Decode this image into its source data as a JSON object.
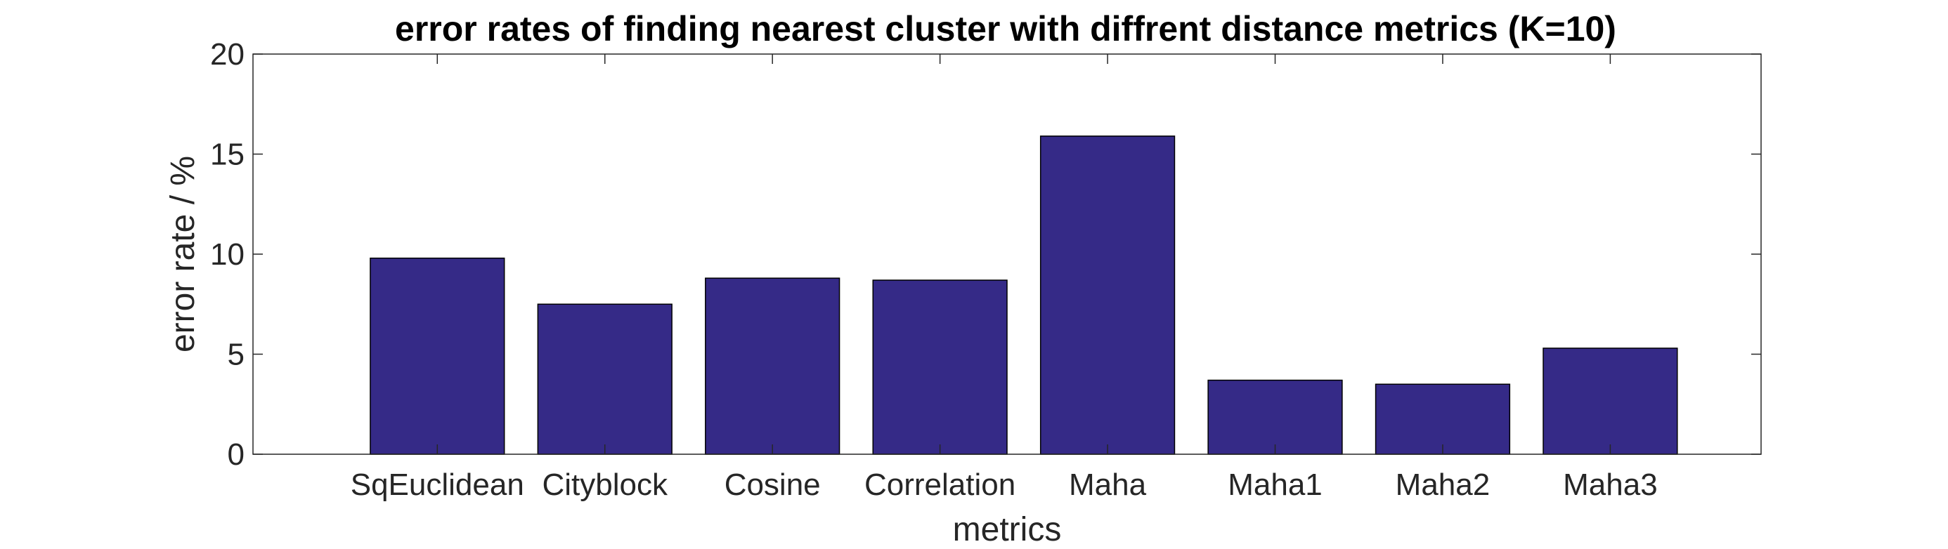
{
  "chart_data": {
    "type": "bar",
    "title": "error rates of finding nearest cluster with diffrent distance metrics (K=10)",
    "xlabel": "metrics",
    "ylabel": "error rate / %",
    "categories": [
      "SqEuclidean",
      "Cityblock",
      "Cosine",
      "Correlation",
      "Maha",
      "Maha1",
      "Maha2",
      "Maha3"
    ],
    "values": [
      9.8,
      7.5,
      8.8,
      8.7,
      15.9,
      3.7,
      3.5,
      5.3
    ],
    "ylim": [
      0,
      20
    ],
    "yticks": [
      0,
      5,
      10,
      15,
      20
    ],
    "xlim": [
      0.4,
      9.4
    ],
    "bar_color": "#352A87",
    "grid": false,
    "legend": "none"
  }
}
